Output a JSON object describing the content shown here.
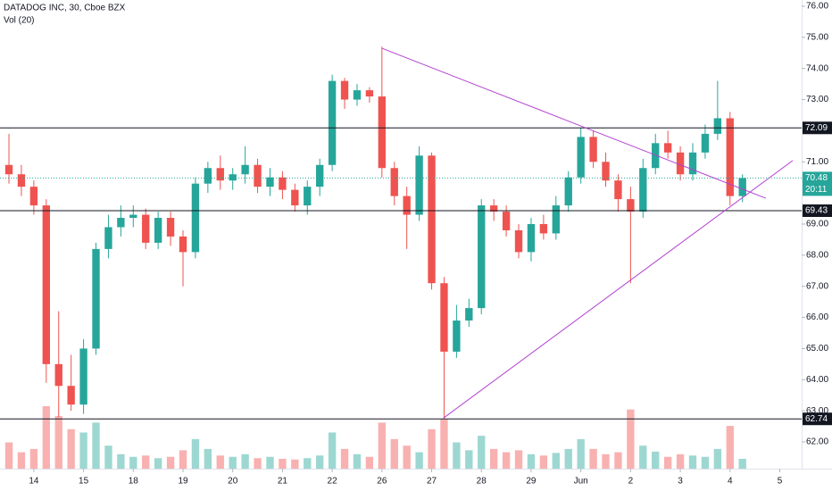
{
  "chart_data": {
    "type": "candlestick",
    "title": "DATADOG INC, 30, Cboe BZX",
    "subtitle": "Vol (20)",
    "up_color": "#26a69a",
    "down_color": "#ef5350",
    "x": [
      -0.5,
      -0.25,
      0,
      0.25,
      0.5,
      0.75,
      1,
      1.25,
      1.5,
      1.75,
      2,
      2.25,
      2.5,
      2.75,
      3,
      3.25,
      3.5,
      3.75,
      4,
      4.25,
      4.5,
      4.75,
      5,
      5.25,
      5.5,
      5.75,
      6,
      6.25,
      6.5,
      6.75,
      7,
      7.25,
      7.5,
      7.75,
      8,
      8.25,
      8.5,
      8.75,
      9,
      9.25,
      9.5,
      9.75,
      10,
      10.25,
      10.5,
      10.75,
      11,
      11.25,
      11.5,
      11.75,
      12,
      12.25,
      12.5,
      12.75,
      13,
      13.25,
      13.5,
      13.75,
      14,
      14.25
    ],
    "open": [
      70.9,
      70.6,
      70.2,
      69.6,
      64.5,
      63.8,
      63.2,
      65.0,
      68.2,
      68.9,
      69.2,
      69.3,
      68.4,
      69.2,
      68.6,
      68.1,
      70.3,
      70.8,
      70.4,
      70.6,
      70.9,
      70.2,
      70.5,
      70.1,
      69.6,
      70.2,
      70.9,
      73.6,
      73.0,
      73.3,
      73.1,
      70.8,
      69.9,
      69.3,
      71.2,
      67.1,
      64.9,
      65.9,
      66.3,
      69.6,
      69.4,
      68.8,
      68.1,
      69.0,
      68.7,
      69.6,
      70.5,
      71.8,
      71.0,
      70.4,
      69.8,
      69.4,
      70.8,
      71.6,
      71.3,
      70.6,
      71.3,
      71.9,
      72.4,
      69.9
    ],
    "high": [
      71.9,
      70.9,
      70.4,
      69.8,
      66.2,
      64.8,
      65.3,
      68.4,
      69.3,
      69.6,
      69.6,
      69.5,
      69.4,
      69.4,
      68.8,
      70.5,
      71.0,
      71.2,
      70.8,
      71.5,
      71.1,
      70.8,
      70.7,
      70.3,
      70.4,
      71.1,
      73.8,
      73.7,
      73.5,
      73.4,
      74.7,
      71.0,
      70.2,
      71.5,
      71.3,
      67.3,
      66.4,
      66.6,
      69.8,
      69.8,
      69.6,
      69.0,
      69.2,
      69.3,
      69.9,
      70.7,
      72.1,
      72.0,
      71.3,
      70.6,
      70.2,
      71.1,
      71.9,
      72.0,
      71.5,
      71.6,
      72.2,
      73.6,
      72.6,
      70.6
    ],
    "low": [
      70.3,
      69.9,
      69.3,
      63.9,
      62.8,
      63.0,
      62.9,
      64.8,
      67.9,
      68.6,
      68.9,
      68.2,
      68.2,
      68.3,
      67.0,
      67.9,
      70.0,
      70.1,
      70.1,
      70.3,
      70.0,
      69.9,
      69.8,
      69.4,
      69.3,
      69.9,
      70.7,
      72.7,
      72.8,
      72.9,
      70.5,
      69.6,
      68.2,
      69.1,
      66.9,
      62.74,
      64.7,
      65.7,
      66.1,
      69.1,
      68.6,
      67.9,
      67.8,
      68.5,
      68.5,
      69.4,
      70.3,
      70.8,
      70.2,
      69.4,
      67.1,
      69.2,
      70.6,
      71.1,
      70.4,
      70.4,
      71.1,
      71.7,
      69.6,
      69.7
    ],
    "close": [
      70.6,
      70.2,
      69.6,
      64.5,
      63.8,
      63.2,
      65.0,
      68.2,
      68.9,
      69.2,
      69.3,
      68.4,
      69.2,
      68.6,
      68.1,
      70.3,
      70.8,
      70.4,
      70.6,
      70.9,
      70.2,
      70.5,
      70.1,
      69.6,
      70.2,
      70.9,
      73.6,
      73.0,
      73.3,
      73.1,
      70.8,
      69.9,
      69.3,
      71.2,
      67.1,
      64.9,
      65.9,
      66.3,
      69.6,
      69.4,
      68.8,
      68.1,
      69.0,
      68.7,
      69.6,
      70.5,
      71.8,
      71.0,
      70.4,
      69.8,
      69.4,
      70.8,
      71.6,
      71.3,
      70.6,
      71.3,
      71.9,
      72.4,
      69.9,
      70.48
    ],
    "volume": [
      40,
      25,
      30,
      95,
      80,
      60,
      55,
      70,
      35,
      22,
      18,
      20,
      16,
      18,
      28,
      45,
      30,
      20,
      18,
      22,
      16,
      18,
      15,
      14,
      16,
      20,
      55,
      30,
      22,
      18,
      70,
      45,
      35,
      25,
      60,
      75,
      40,
      28,
      50,
      30,
      25,
      28,
      22,
      20,
      24,
      30,
      45,
      30,
      22,
      25,
      90,
      35,
      26,
      18,
      22,
      20,
      18,
      30,
      65,
      15
    ],
    "xlim": [
      -0.68,
      15.44
    ],
    "xticks": [
      {
        "value": 0,
        "label": "14"
      },
      {
        "value": 1,
        "label": "15"
      },
      {
        "value": 2,
        "label": "18"
      },
      {
        "value": 3,
        "label": "19"
      },
      {
        "value": 4,
        "label": "20"
      },
      {
        "value": 5,
        "label": "21"
      },
      {
        "value": 6,
        "label": "22"
      },
      {
        "value": 7,
        "label": "26"
      },
      {
        "value": 8,
        "label": "27"
      },
      {
        "value": 9,
        "label": "28"
      },
      {
        "value": 10,
        "label": "29"
      },
      {
        "value": 11,
        "label": "Jun"
      },
      {
        "value": 12,
        "label": "2"
      },
      {
        "value": 13,
        "label": "3"
      },
      {
        "value": 14,
        "label": "4"
      },
      {
        "value": 15,
        "label": "5"
      }
    ],
    "ylim": [
      61.14,
      76.2
    ],
    "yticks": [
      {
        "value": 76,
        "label": "76.00"
      },
      {
        "value": 75,
        "label": "75.00"
      },
      {
        "value": 74,
        "label": "74.00"
      },
      {
        "value": 73,
        "label": "73.00"
      },
      {
        "value": 71,
        "label": "71.00"
      },
      {
        "value": 69,
        "label": "69.00"
      },
      {
        "value": 68,
        "label": "68.00"
      },
      {
        "value": 67,
        "label": "67.00"
      },
      {
        "value": 66,
        "label": "66.00"
      },
      {
        "value": 65,
        "label": "65.00"
      },
      {
        "value": 64,
        "label": "64.00"
      },
      {
        "value": 63,
        "label": "63.00"
      },
      {
        "value": 62,
        "label": "62.00"
      }
    ],
    "levels": [
      72.09,
      69.43,
      62.74
    ],
    "trendlines": [
      {
        "color": "#b23fd0",
        "x": [
          7.0,
          14.72
        ],
        "y": [
          74.65,
          69.83
        ]
      },
      {
        "color": "#b23fd0",
        "x": [
          8.24,
          15.26
        ],
        "y": [
          62.77,
          71.04
        ]
      }
    ],
    "last_price": 70.48,
    "countdown": "20:11"
  }
}
